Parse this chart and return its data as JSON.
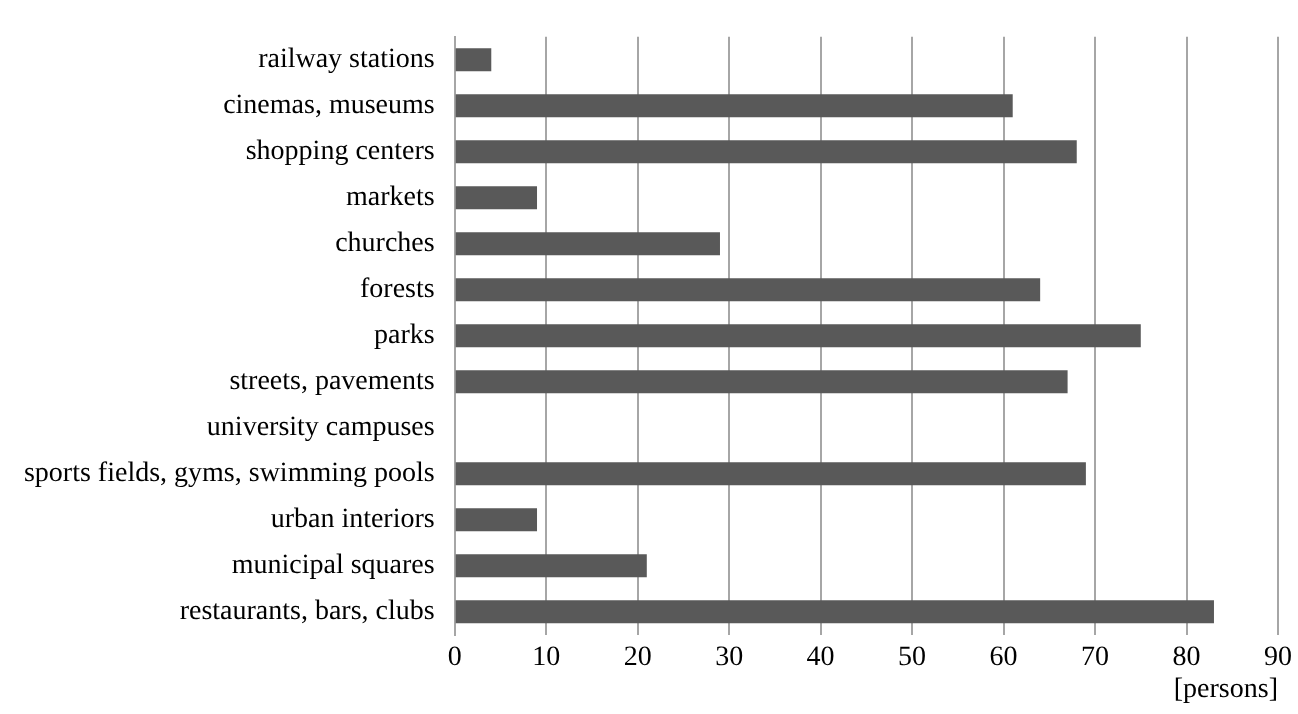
{
  "chart_data": {
    "type": "bar",
    "orientation": "horizontal",
    "xlabel": "[persons]",
    "categories": [
      "railway stations",
      "cinemas, museums",
      "shopping centers",
      "markets",
      "churches",
      "forests",
      "parks",
      "streets, pavements",
      "university campuses",
      "sports fields, gyms, swimming pools",
      "urban interiors",
      "municipal squares",
      "restaurants, bars, clubs"
    ],
    "values": [
      4,
      61,
      68,
      9,
      29,
      64,
      75,
      67,
      0,
      69,
      9,
      21,
      83
    ],
    "color": "#595959",
    "xlim": [
      0,
      90
    ],
    "xticks": [
      0,
      10,
      20,
      30,
      40,
      50,
      60,
      70,
      80,
      90
    ],
    "grid": "x",
    "legend": false
  }
}
